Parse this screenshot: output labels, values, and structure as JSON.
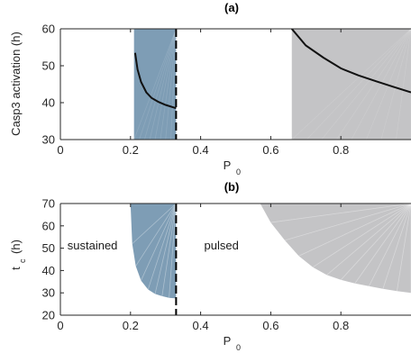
{
  "chart_data": [
    {
      "type": "line",
      "title": "(a)",
      "xlabel": "P",
      "xlabel_sub": "0",
      "ylabel": "Casp3 activation (h)",
      "xlim": [
        0,
        1
      ],
      "ylim": [
        30,
        60
      ],
      "xticks": [
        0,
        0.2,
        0.4,
        0.6,
        0.8
      ],
      "xtick_labels": [
        "0",
        "0.2",
        "0.4",
        "0.6",
        "0.8"
      ],
      "yticks": [
        30,
        40,
        50,
        60
      ],
      "ytick_labels": [
        "30",
        "40",
        "50",
        "60"
      ],
      "grid": false,
      "regions": [
        {
          "name": "sustained",
          "x": [
            0.21,
            0.33
          ],
          "color": "#7e9db5"
        },
        {
          "name": "pulsed",
          "x": [
            0.66,
            1.0
          ],
          "color": "#c4c4c6"
        }
      ],
      "threshold_line": {
        "x": 0.33,
        "style": "dashed"
      },
      "series": [
        {
          "color": "#111111",
          "segments": [
            {
              "x": [
                0.213,
                0.22,
                0.23,
                0.245,
                0.26,
                0.28,
                0.3,
                0.33
              ],
              "y": [
                53.5,
                49.0,
                45.6,
                42.8,
                41.3,
                40.2,
                39.4,
                38.5
              ]
            },
            {
              "x": [
                0.66,
                0.7,
                0.75,
                0.8,
                0.85,
                0.9,
                0.95,
                1.0
              ],
              "y": [
                60.0,
                55.5,
                52.2,
                49.3,
                47.4,
                45.8,
                44.3,
                42.8
              ]
            }
          ]
        }
      ]
    },
    {
      "type": "area",
      "title": "(b)",
      "xlabel": "P",
      "xlabel_sub": "0",
      "ylabel": "t",
      "ylabel_sub": "c",
      "ylabel_unit": "(h)",
      "xlim": [
        0,
        1
      ],
      "ylim": [
        20,
        70
      ],
      "xticks": [
        0,
        0.2,
        0.4,
        0.6,
        0.8
      ],
      "xtick_labels": [
        "0",
        "0.2",
        "0.4",
        "0.6",
        "0.8"
      ],
      "yticks": [
        20,
        30,
        40,
        50,
        60,
        70
      ],
      "ytick_labels": [
        "20",
        "30",
        "40",
        "50",
        "60",
        "70"
      ],
      "grid": false,
      "threshold_line": {
        "x": 0.33,
        "style": "dashed"
      },
      "regions": [
        {
          "name": "sustained",
          "label": "sustained",
          "label_pos": [
            0.02,
            51
          ],
          "color": "#7e9db5",
          "boundary_x": [
            0.2,
            0.205,
            0.215,
            0.23,
            0.25,
            0.27,
            0.29,
            0.31,
            0.33
          ],
          "boundary_y": [
            70,
            52,
            42,
            35.5,
            31.5,
            29.5,
            28.5,
            27.8,
            27.5
          ]
        },
        {
          "name": "pulsed",
          "label": "pulsed",
          "label_pos": [
            0.41,
            51
          ],
          "color": "#c4c4c6",
          "boundary_x": [
            0.57,
            0.6,
            0.64,
            0.68,
            0.72,
            0.76,
            0.8,
            0.84,
            0.88,
            0.92,
            0.96,
            1.0
          ],
          "boundary_y": [
            70,
            61.5,
            53.5,
            46.5,
            41.5,
            38.0,
            35.8,
            34.2,
            33.0,
            31.8,
            30.8,
            30.0
          ]
        }
      ]
    }
  ]
}
